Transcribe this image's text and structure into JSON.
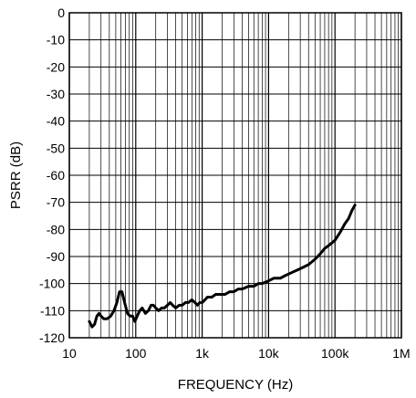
{
  "chart_data": {
    "type": "line",
    "title": "",
    "xlabel": "FREQUENCY (Hz)",
    "ylabel": "PSRR (dB)",
    "x_scale": "log",
    "xlim": [
      10,
      1000000
    ],
    "ylim": [
      -120,
      0
    ],
    "grid": true,
    "x_tick_labels": [
      "10",
      "100",
      "1k",
      "10k",
      "100k",
      "1M"
    ],
    "y_tick_labels": [
      "0",
      "-10",
      "-20",
      "-30",
      "-40",
      "-50",
      "-60",
      "-70",
      "-80",
      "-90",
      "-100",
      "-110",
      "-120"
    ],
    "series": [
      {
        "color": "#000000",
        "points": [
          [
            20,
            -114
          ],
          [
            22,
            -116
          ],
          [
            24,
            -115
          ],
          [
            26,
            -112
          ],
          [
            28,
            -111
          ],
          [
            30,
            -112
          ],
          [
            33,
            -113
          ],
          [
            37,
            -113
          ],
          [
            42,
            -112
          ],
          [
            47,
            -110
          ],
          [
            52,
            -107
          ],
          [
            57,
            -103
          ],
          [
            62,
            -103
          ],
          [
            68,
            -107
          ],
          [
            75,
            -111
          ],
          [
            82,
            -112
          ],
          [
            90,
            -112
          ],
          [
            97,
            -114
          ],
          [
            105,
            -112
          ],
          [
            115,
            -110
          ],
          [
            125,
            -109
          ],
          [
            140,
            -111
          ],
          [
            155,
            -110
          ],
          [
            170,
            -108
          ],
          [
            185,
            -108
          ],
          [
            200,
            -109
          ],
          [
            220,
            -110
          ],
          [
            245,
            -109
          ],
          [
            270,
            -109
          ],
          [
            300,
            -108
          ],
          [
            330,
            -107
          ],
          [
            360,
            -108
          ],
          [
            400,
            -109
          ],
          [
            450,
            -108
          ],
          [
            500,
            -108
          ],
          [
            560,
            -107
          ],
          [
            620,
            -107
          ],
          [
            700,
            -106
          ],
          [
            780,
            -107
          ],
          [
            850,
            -108
          ],
          [
            920,
            -107
          ],
          [
            1000,
            -107
          ],
          [
            1100,
            -106
          ],
          [
            1200,
            -105
          ],
          [
            1400,
            -105
          ],
          [
            1600,
            -104
          ],
          [
            1900,
            -104
          ],
          [
            2200,
            -104
          ],
          [
            2600,
            -103
          ],
          [
            3000,
            -103
          ],
          [
            3500,
            -102
          ],
          [
            4000,
            -102
          ],
          [
            5000,
            -101
          ],
          [
            6000,
            -101
          ],
          [
            7000,
            -100
          ],
          [
            8000,
            -100
          ],
          [
            10000,
            -99
          ],
          [
            12000,
            -98
          ],
          [
            15000,
            -98
          ],
          [
            18000,
            -97
          ],
          [
            22000,
            -96
          ],
          [
            27000,
            -95
          ],
          [
            33000,
            -94
          ],
          [
            40000,
            -93
          ],
          [
            50000,
            -91
          ],
          [
            60000,
            -89
          ],
          [
            70000,
            -87
          ],
          [
            80000,
            -86
          ],
          [
            100000,
            -84
          ],
          [
            120000,
            -81
          ],
          [
            140000,
            -78
          ],
          [
            160000,
            -76
          ],
          [
            180000,
            -73
          ],
          [
            200000,
            -71
          ]
        ]
      }
    ]
  }
}
